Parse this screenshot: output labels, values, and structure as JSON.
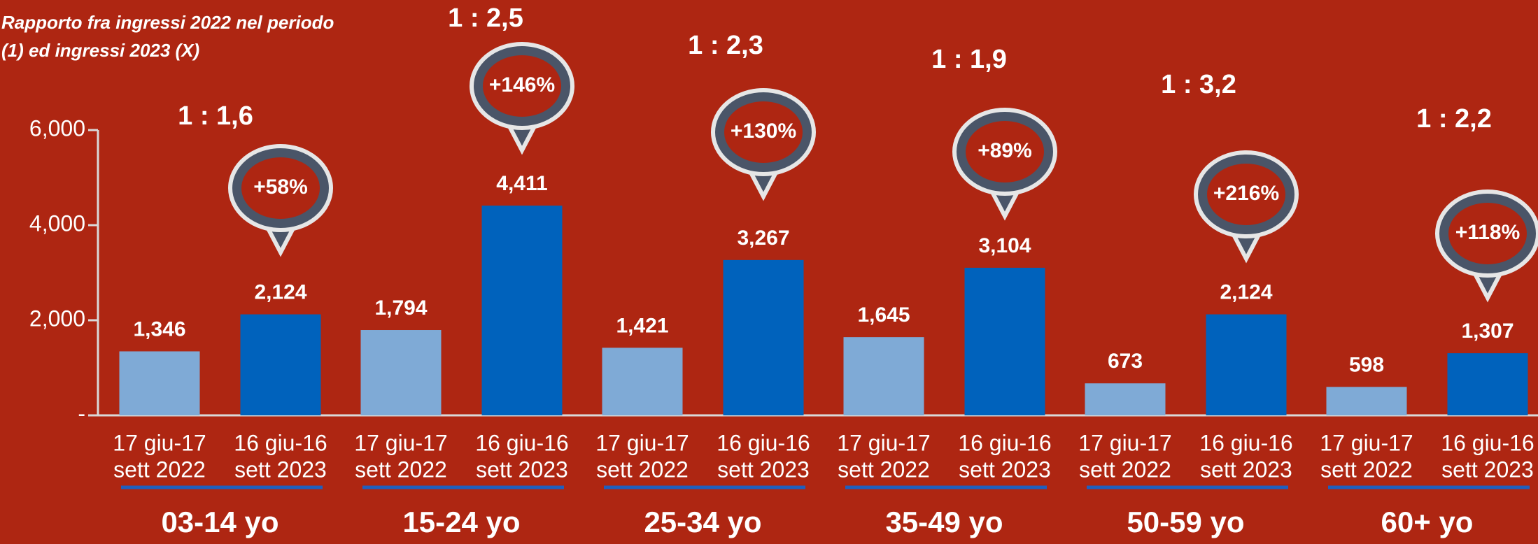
{
  "chart_data": {
    "type": "bar",
    "title": [
      "Rapporto fra ingressi 2022 nel periodo",
      "(1) ed ingressi 2023 (X)"
    ],
    "categories": [
      "03-14 yo",
      "15-24 yo",
      "25-34 yo",
      "35-49 yo",
      "50-59 yo",
      "60+ yo"
    ],
    "series": [
      {
        "name": [
          "17 giu-17",
          "sett 2022"
        ],
        "color": "#7faad6",
        "values": [
          1346,
          1794,
          1421,
          1645,
          673,
          598
        ],
        "value_labels": [
          "1,346",
          "1,794",
          "1,421",
          "1,645",
          "673",
          "598"
        ]
      },
      {
        "name": [
          "16 giu-16",
          "sett 2023"
        ],
        "color": "#0062bc",
        "values": [
          2124,
          4411,
          3267,
          3104,
          2124,
          1307
        ],
        "value_labels": [
          "2,124",
          "4,411",
          "3,267",
          "3,104",
          "2,124",
          "1,307"
        ]
      }
    ],
    "ratios": [
      "1 : 1,6",
      "1 : 2,5",
      "1 : 2,3",
      "1 : 1,9",
      "1 : 3,2",
      "1 : 2,2"
    ],
    "changes": [
      "+58%",
      "+146%",
      "+130%",
      "+89%",
      "+216%",
      "+118%"
    ],
    "ylim": [
      0,
      6000
    ],
    "yticks": [
      {
        "value": 0,
        "label": "-"
      },
      {
        "value": 2000,
        "label": "2,000"
      },
      {
        "value": 4000,
        "label": "4,000"
      },
      {
        "value": 6000,
        "label": "6,000"
      }
    ]
  }
}
